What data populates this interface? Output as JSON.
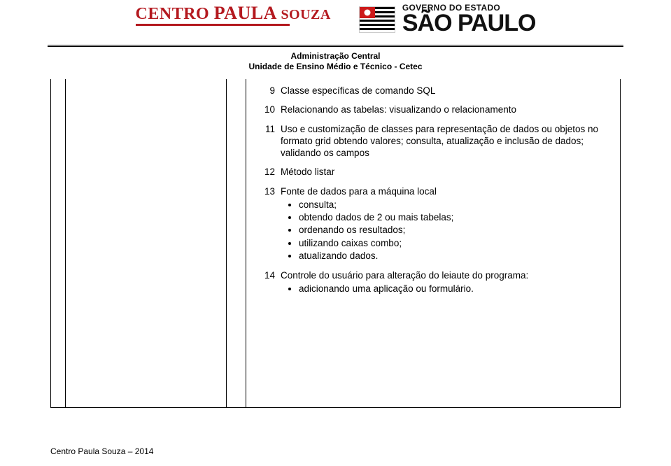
{
  "header": {
    "cps_name_1": "CENTRO ",
    "cps_name_2": "PAULA ",
    "cps_name_3": "SOUZA",
    "cps_sub": "",
    "sp_line1": "GOVERNO DO ESTADO",
    "sp_line2": "SÃO PAULO",
    "admin1": "Administração Central",
    "admin2": "Unidade de Ensino Médio e Técnico - Cetec"
  },
  "rows": [
    {
      "n": "9",
      "text": "Classe específicas de comando SQL"
    },
    {
      "n": "10",
      "text": "Relacionando as tabelas: visualizando o relacionamento"
    },
    {
      "n": "11",
      "text": "Uso e customização de classes para representação de dados ou objetos no formato grid obtendo valores; consulta, atualização e inclusão de dados; validando os campos"
    },
    {
      "n": "12",
      "text": "Método listar"
    },
    {
      "n": "13",
      "text": "Fonte de dados para a máquina local",
      "bullets": [
        "consulta;",
        "obtendo dados de 2 ou mais tabelas;",
        "ordenando os resultados;",
        "utilizando caixas combo;",
        "atualizando dados."
      ]
    },
    {
      "n": "14",
      "text": "Controle do usuário para alteração do leiaute do programa:",
      "bullets": [
        "adicionando uma aplicação ou formulário."
      ]
    }
  ],
  "footer": "Centro Paula Souza – 2014",
  "colors": {
    "cps_red": "#b4191f",
    "text": "#000000",
    "bg": "#ffffff",
    "border": "#000000"
  }
}
